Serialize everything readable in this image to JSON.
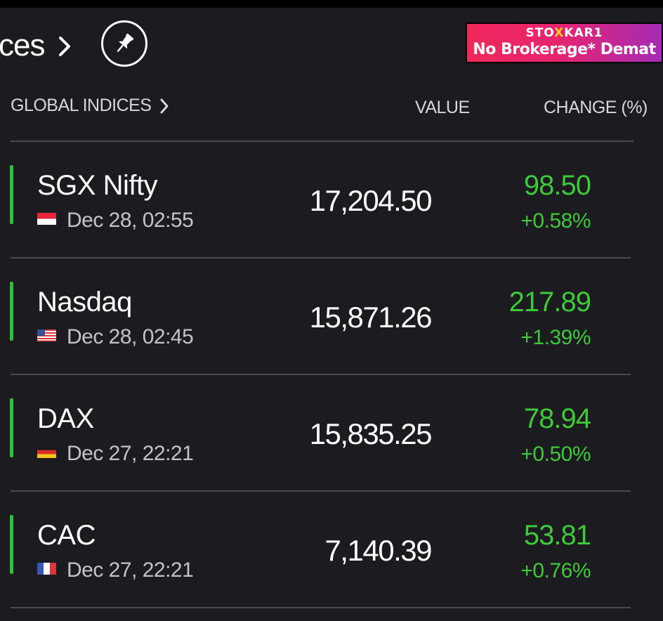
{
  "header": {
    "title": "ces",
    "pin_icon": "pin-icon",
    "chevron_icon": "chevron-right-icon"
  },
  "ad": {
    "brand_prefix": "STO",
    "brand_x": "X",
    "brand_suffix": "KAR1",
    "tagline": "No Brokerage* Demat",
    "colors": {
      "start": "#f0285a",
      "end": "#a52bb5",
      "accent": "#f3d11e"
    }
  },
  "columns": {
    "indices": "GLOBAL INDICES",
    "value": "VALUE",
    "change": "CHANGE (%)"
  },
  "colors": {
    "positive": "#3ec93a",
    "indicator": "#2fbf3a",
    "background": "#1b1b20"
  },
  "rows": [
    {
      "name": "SGX Nifty",
      "flag": "singapore-flag-icon",
      "time": "Dec 28, 02:55",
      "value": "17,204.50",
      "change": "98.50",
      "pct": "+0.58%"
    },
    {
      "name": "Nasdaq",
      "flag": "usa-flag-icon",
      "time": "Dec 28, 02:45",
      "value": "15,871.26",
      "change": "217.89",
      "pct": "+1.39%"
    },
    {
      "name": "DAX",
      "flag": "germany-flag-icon",
      "time": "Dec 27, 22:21",
      "value": "15,835.25",
      "change": "78.94",
      "pct": "+0.50%"
    },
    {
      "name": "CAC",
      "flag": "france-flag-icon",
      "time": "Dec 27, 22:21",
      "value": "7,140.39",
      "change": "53.81",
      "pct": "+0.76%"
    }
  ]
}
